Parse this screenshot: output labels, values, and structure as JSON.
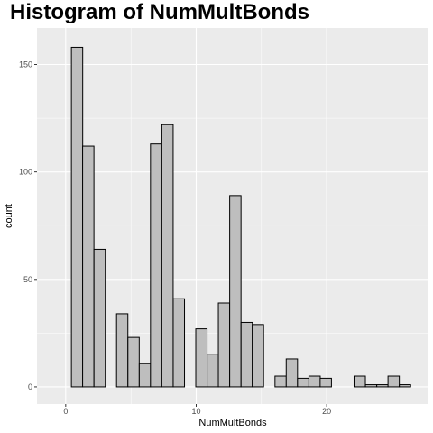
{
  "chart_data": {
    "type": "bar",
    "title": "Histogram of NumMultBonds",
    "xlabel": "NumMultBonds",
    "ylabel": "count",
    "xlim": [
      -2.2,
      27.8
    ],
    "ylim": [
      -8,
      167
    ],
    "xticks": [
      0,
      10,
      20
    ],
    "yticks": [
      0,
      50,
      100,
      150
    ],
    "bin_width": 0.8667,
    "bins": [
      {
        "x": 0.87,
        "value": 158
      },
      {
        "x": 1.73,
        "value": 112
      },
      {
        "x": 2.6,
        "value": 64
      },
      {
        "x": 3.47,
        "value": 0
      },
      {
        "x": 4.33,
        "value": 34
      },
      {
        "x": 5.2,
        "value": 23
      },
      {
        "x": 6.07,
        "value": 11
      },
      {
        "x": 6.93,
        "value": 113
      },
      {
        "x": 7.8,
        "value": 122
      },
      {
        "x": 8.67,
        "value": 41
      },
      {
        "x": 9.53,
        "value": 0
      },
      {
        "x": 10.4,
        "value": 27
      },
      {
        "x": 11.27,
        "value": 15
      },
      {
        "x": 12.13,
        "value": 39
      },
      {
        "x": 13.0,
        "value": 89
      },
      {
        "x": 13.87,
        "value": 30
      },
      {
        "x": 14.73,
        "value": 29
      },
      {
        "x": 15.6,
        "value": 0
      },
      {
        "x": 16.47,
        "value": 5
      },
      {
        "x": 17.33,
        "value": 13
      },
      {
        "x": 18.2,
        "value": 4
      },
      {
        "x": 19.07,
        "value": 5
      },
      {
        "x": 19.93,
        "value": 4
      },
      {
        "x": 20.8,
        "value": 0
      },
      {
        "x": 21.67,
        "value": 0
      },
      {
        "x": 22.53,
        "value": 5
      },
      {
        "x": 23.4,
        "value": 1
      },
      {
        "x": 24.27,
        "value": 1
      },
      {
        "x": 25.13,
        "value": 5
      },
      {
        "x": 26.0,
        "value": 1
      }
    ],
    "grid": true,
    "colors": {
      "panel_background": "#ebebeb",
      "grid_line": "#ffffff",
      "bar_fill": "#bebebe",
      "bar_stroke": "#000000"
    }
  }
}
